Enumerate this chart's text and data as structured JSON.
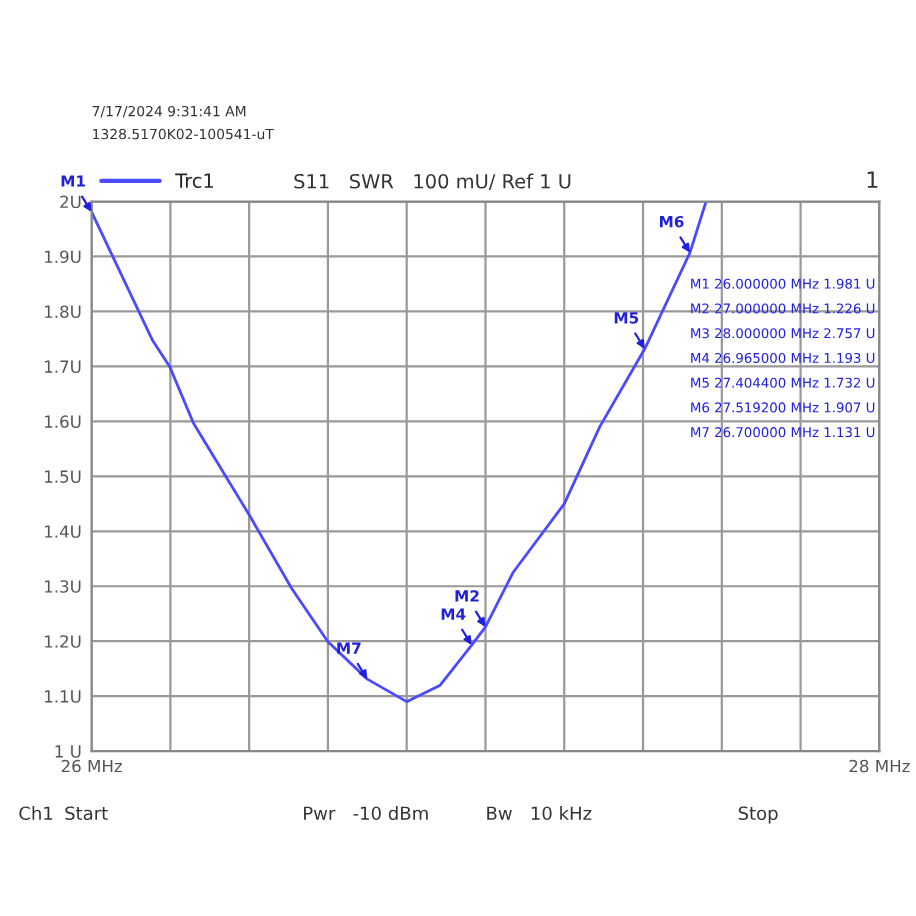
{
  "chart_data": {
    "type": "line",
    "series": [
      {
        "name": "Trc1",
        "color": "#4a4aff",
        "x": [
          26.0,
          26.155,
          26.198,
          26.259,
          26.4,
          26.508,
          26.6,
          26.7,
          26.8,
          26.885,
          26.965,
          27.0,
          27.07,
          27.2,
          27.29,
          27.4044,
          27.5192,
          27.56
        ],
        "values": [
          1.981,
          1.747,
          1.7,
          1.596,
          1.43,
          1.296,
          1.199,
          1.131,
          1.09,
          1.12,
          1.193,
          1.226,
          1.325,
          1.45,
          1.59,
          1.732,
          1.907,
          2.0
        ]
      }
    ],
    "xlim": [
      26,
      28
    ],
    "xticks": [
      {
        "value": 26,
        "label": "26 MHz"
      },
      {
        "value": 26.2,
        "label": null
      },
      {
        "value": 26.4,
        "label": null
      },
      {
        "value": 26.6,
        "label": null
      },
      {
        "value": 26.8,
        "label": null
      },
      {
        "value": 27,
        "label": null
      },
      {
        "value": 27.2,
        "label": null
      },
      {
        "value": 27.4,
        "label": null
      },
      {
        "value": 27.6,
        "label": null
      },
      {
        "value": 27.8,
        "label": null
      },
      {
        "value": 28,
        "label": "28 MHz"
      }
    ],
    "ylim": [
      1,
      2
    ],
    "yticks": [
      {
        "value": 1,
        "label": "1 U"
      },
      {
        "value": 1.1,
        "label": "1.1U"
      },
      {
        "value": 1.2,
        "label": "1.2U"
      },
      {
        "value": 1.3,
        "label": "1.3U"
      },
      {
        "value": 1.4,
        "label": "1.4U"
      },
      {
        "value": 1.5,
        "label": "1.5U"
      },
      {
        "value": 1.6,
        "label": "1.6U"
      },
      {
        "value": 1.7,
        "label": "1.7U"
      },
      {
        "value": 1.8,
        "label": "1.8U"
      },
      {
        "value": 1.9,
        "label": "1.9U"
      },
      {
        "value": 2,
        "label": "2U"
      }
    ],
    "grid": true,
    "legend": "top left",
    "marker": "none",
    "line_style": "solid",
    "annotations": [
      "7/17/2024 9:31:41 AM",
      "1328.5170K02-100541-uT",
      "S11   SWR   100 mU/ Ref 1 U",
      "1",
      "M1 26.000000 MHz 1.981 U",
      "M2 27.000000 MHz 1.226 U",
      "M3 28.000000 MHz 2.757 U",
      "M4 26.965000 MHz 1.193 U",
      "M5 27.404400 MHz 1.732 U",
      "M6 27.519200 MHz 1.907 U",
      "M7 26.700000 MHz 1.131 U",
      "Ch1",
      "Start",
      "Pwr   -10 dBm",
      "Bw   10 kHz",
      "Stop",
      {
        "text": "M1",
        "x": 26.0,
        "y": 1.981
      },
      {
        "text": "M2",
        "x": 27.0,
        "y": 1.226
      },
      {
        "text": "M4",
        "x": 26.965,
        "y": 1.193
      },
      {
        "text": "M5",
        "x": 27.4044,
        "y": 1.732
      },
      {
        "text": "M6",
        "x": 27.5192,
        "y": 1.907
      },
      {
        "text": "M7",
        "x": 26.7,
        "y": 1.131
      }
    ]
  }
}
